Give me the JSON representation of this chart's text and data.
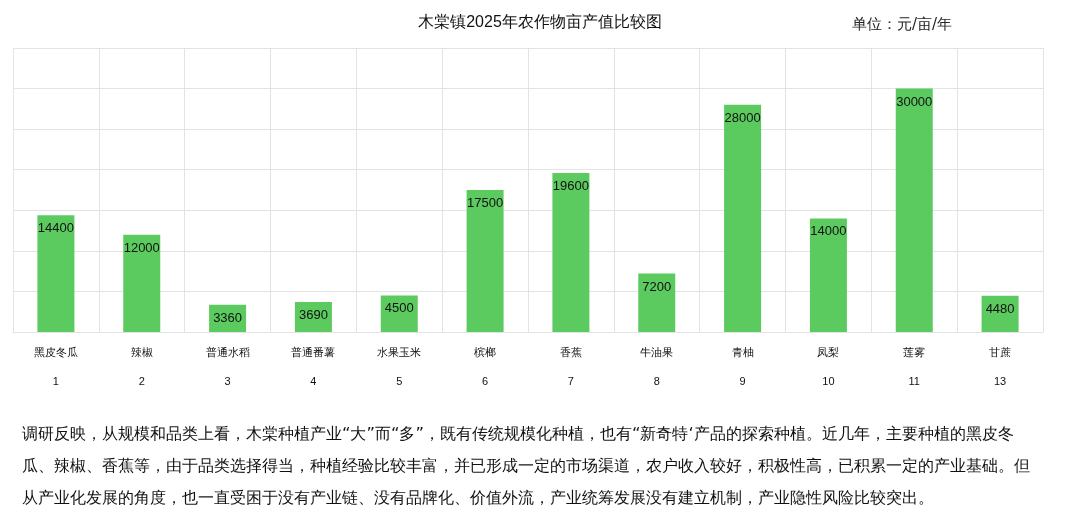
{
  "chart_data": {
    "type": "bar",
    "title": "木棠镇2025年农作物亩产值比较图",
    "categories": [
      "黑皮冬瓜\n1",
      "辣椒\n2",
      "普通水稻\n3",
      "普通番薯\n4",
      "水果玉米\n5",
      "槟榔\n6",
      "香蕉\n7",
      "牛油果\n8",
      "青柚\n9",
      "凤梨\n10",
      "莲雾\n11",
      "甘蔗\n13"
    ],
    "values": [
      14400,
      12000,
      3360,
      3690,
      4500,
      17500,
      19600,
      7200,
      28000,
      14000,
      30000,
      4480
    ],
    "color": "#5ccb5f",
    "ylim": [
      0,
      35000
    ],
    "yticks": [
      {
        "value": 0,
        "label": null
      },
      {
        "value": 5000,
        "label": null
      },
      {
        "value": 10000,
        "label": null
      },
      {
        "value": 15000,
        "label": null
      },
      {
        "value": 20000,
        "label": null
      },
      {
        "value": 25000,
        "label": null
      },
      {
        "value": 30000,
        "label": null
      },
      {
        "value": 35000,
        "label": null
      }
    ],
    "tick_labels": "x",
    "grid": true,
    "data_labels": true,
    "annotations": [
      "单位：元/亩/年",
      "调研反映，从规模和品类上看，木棠种植产业“大”而“多”，既有传统规模化种植，也有“新奇特‘产品的探索种植。近几年，主要种植的黑皮冬瓜、辣椒、香蕉等，由于品类选择得当，种植经验比较丰富，并已形成一定的市场渠道，农户收入较好，积极性高，已积累一定的产业基础。但从产业化发展的角度，也一直受困于没有产业链、没有品牌化、价值外流，产业统筹发展没有建立机制，产业隐性风险比较突出。"
    ]
  }
}
